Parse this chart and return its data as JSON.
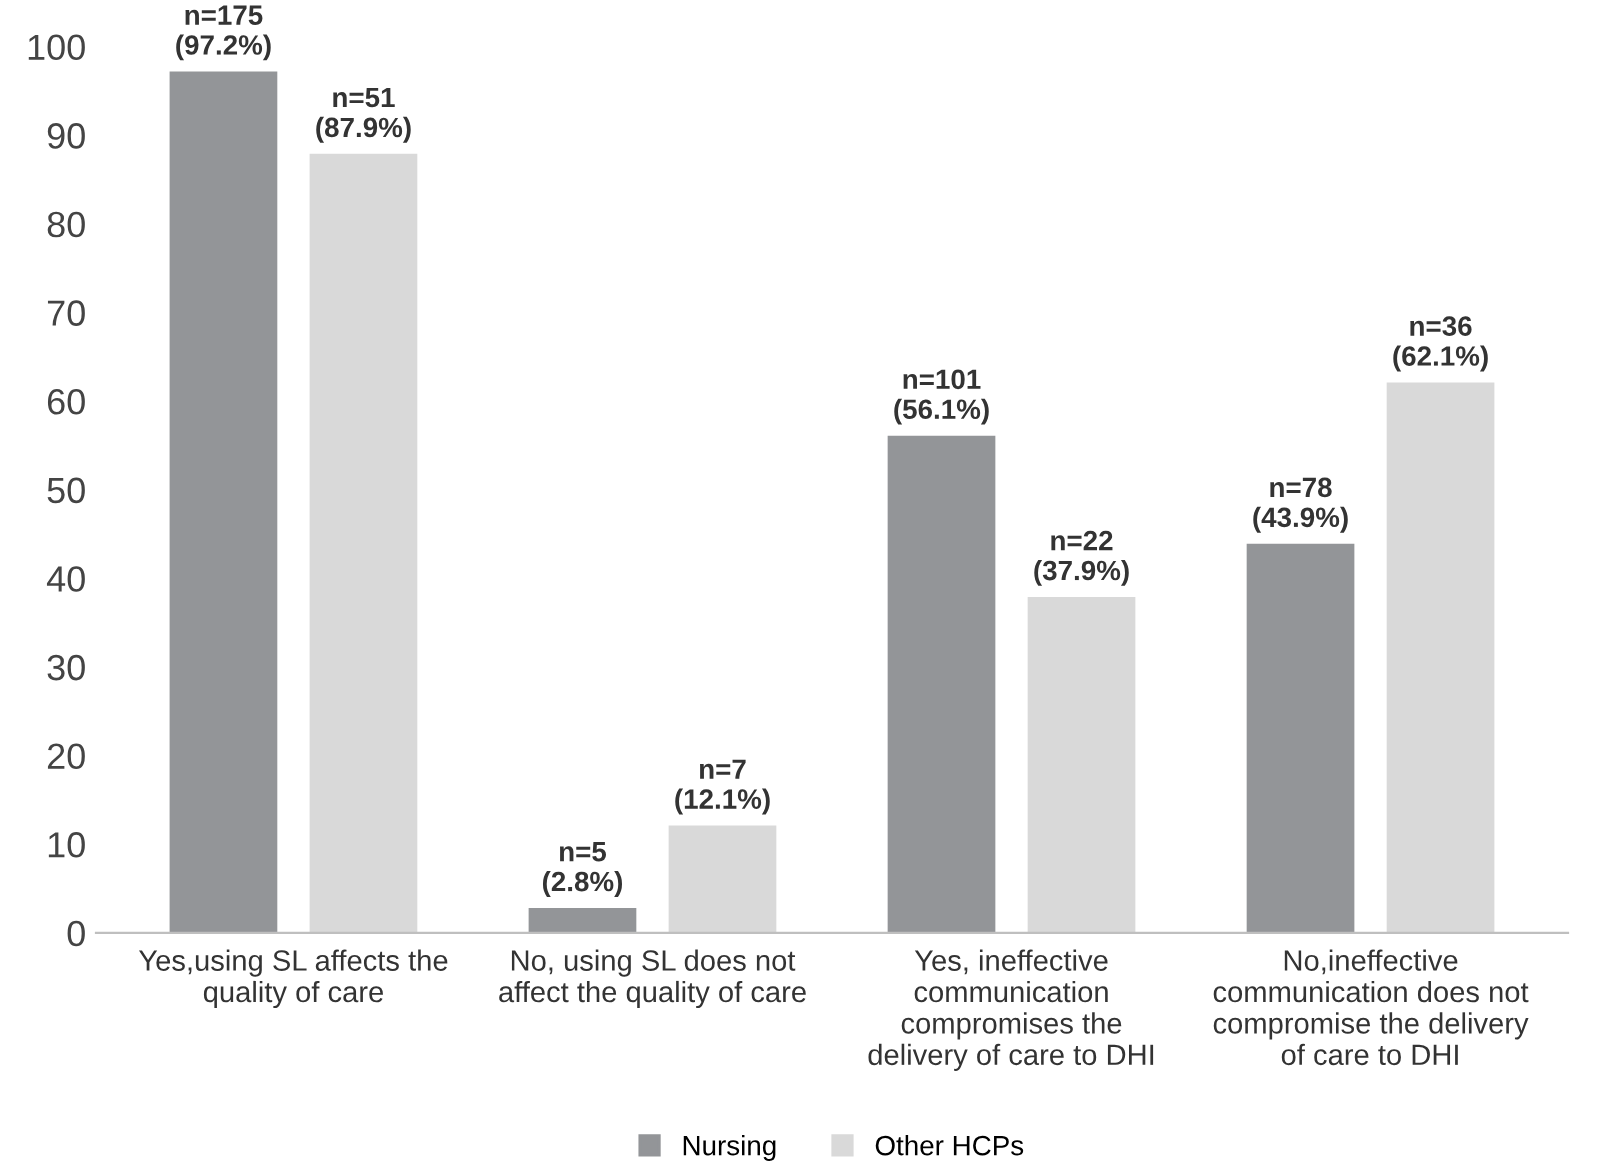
{
  "chart_data": {
    "type": "bar",
    "categories": [
      "Yes,using SL affects the quality of care",
      "No, using SL does not affect the quality of care",
      "Yes, ineffective communication compromises the delivery of care to DHI",
      "No,ineffective communication does not compromise the delivery of care to DHI"
    ],
    "series": [
      {
        "name": "Nursing",
        "color": "#939598",
        "values": [
          97.2,
          2.8,
          56.1,
          43.9
        ],
        "value_labels": [
          "n=175\n(97.2%)",
          "n=5\n(2.8%)",
          "n=101\n(56.1%)",
          "n=78\n(43.9%)"
        ]
      },
      {
        "name": "Other HCPs",
        "color": "#d9d9d9",
        "values": [
          87.9,
          12.1,
          37.9,
          62.1
        ],
        "value_labels": [
          "n=51\n(87.9%)",
          "n=7\n(12.1%)",
          "n=22\n(37.9%)",
          "n=36\n(62.1%)"
        ]
      }
    ],
    "ylim": [
      0,
      100
    ],
    "yticks": [
      0,
      10,
      20,
      30,
      40,
      50,
      60,
      70,
      80,
      90,
      100
    ],
    "grid": false,
    "legend": "bottom"
  }
}
